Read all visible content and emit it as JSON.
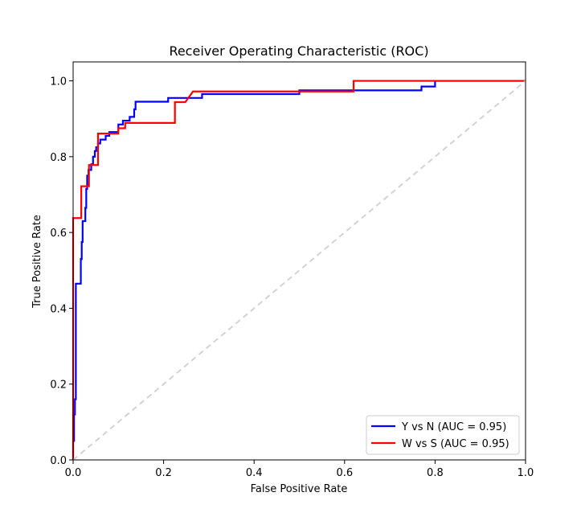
{
  "chart_data": {
    "type": "line",
    "title": "Receiver Operating Characteristic (ROC)",
    "xlabel": "False Positive Rate",
    "ylabel": "True Positive Rate",
    "xlim": [
      0.0,
      1.0
    ],
    "ylim": [
      0.0,
      1.05
    ],
    "x_ticks": [
      "0.0",
      "0.2",
      "0.4",
      "0.6",
      "0.8",
      "1.0"
    ],
    "y_ticks": [
      "0.0",
      "0.2",
      "0.4",
      "0.6",
      "0.8",
      "1.0"
    ],
    "grid": false,
    "legend_position": "lower-right",
    "series": [
      {
        "name": "Y vs N (AUC = 0.95)",
        "color": "#0000ff",
        "style": "solid",
        "points": [
          [
            0.0,
            0.0
          ],
          [
            0.0,
            0.05
          ],
          [
            0.002,
            0.05
          ],
          [
            0.002,
            0.12
          ],
          [
            0.004,
            0.12
          ],
          [
            0.004,
            0.16
          ],
          [
            0.006,
            0.16
          ],
          [
            0.006,
            0.465
          ],
          [
            0.017,
            0.465
          ],
          [
            0.017,
            0.53
          ],
          [
            0.019,
            0.53
          ],
          [
            0.019,
            0.575
          ],
          [
            0.021,
            0.575
          ],
          [
            0.021,
            0.63
          ],
          [
            0.027,
            0.63
          ],
          [
            0.027,
            0.665
          ],
          [
            0.029,
            0.665
          ],
          [
            0.029,
            0.715
          ],
          [
            0.031,
            0.715
          ],
          [
            0.031,
            0.75
          ],
          [
            0.034,
            0.75
          ],
          [
            0.034,
            0.765
          ],
          [
            0.04,
            0.765
          ],
          [
            0.04,
            0.78
          ],
          [
            0.044,
            0.78
          ],
          [
            0.044,
            0.8
          ],
          [
            0.048,
            0.8
          ],
          [
            0.048,
            0.815
          ],
          [
            0.051,
            0.815
          ],
          [
            0.051,
            0.825
          ],
          [
            0.055,
            0.825
          ],
          [
            0.055,
            0.835
          ],
          [
            0.06,
            0.835
          ],
          [
            0.06,
            0.845
          ],
          [
            0.072,
            0.845
          ],
          [
            0.072,
            0.855
          ],
          [
            0.08,
            0.855
          ],
          [
            0.08,
            0.865
          ],
          [
            0.1,
            0.865
          ],
          [
            0.1,
            0.885
          ],
          [
            0.11,
            0.885
          ],
          [
            0.11,
            0.895
          ],
          [
            0.125,
            0.895
          ],
          [
            0.125,
            0.905
          ],
          [
            0.135,
            0.905
          ],
          [
            0.135,
            0.925
          ],
          [
            0.138,
            0.925
          ],
          [
            0.138,
            0.945
          ],
          [
            0.21,
            0.945
          ],
          [
            0.21,
            0.955
          ],
          [
            0.285,
            0.955
          ],
          [
            0.285,
            0.965
          ],
          [
            0.5,
            0.965
          ],
          [
            0.5,
            0.975
          ],
          [
            0.77,
            0.975
          ],
          [
            0.77,
            0.985
          ],
          [
            0.8,
            0.985
          ],
          [
            0.8,
            1.0
          ],
          [
            1.0,
            1.0
          ]
        ]
      },
      {
        "name": "W vs S (AUC = 0.95)",
        "color": "#ff0000",
        "style": "solid",
        "points": [
          [
            0.0,
            0.0
          ],
          [
            0.0,
            0.638
          ],
          [
            0.018,
            0.638
          ],
          [
            0.018,
            0.722
          ],
          [
            0.035,
            0.722
          ],
          [
            0.035,
            0.778
          ],
          [
            0.055,
            0.778
          ],
          [
            0.055,
            0.861
          ],
          [
            0.1,
            0.861
          ],
          [
            0.1,
            0.875
          ],
          [
            0.115,
            0.875
          ],
          [
            0.115,
            0.889
          ],
          [
            0.225,
            0.889
          ],
          [
            0.225,
            0.944
          ],
          [
            0.248,
            0.944
          ],
          [
            0.265,
            0.972
          ],
          [
            0.62,
            0.972
          ],
          [
            0.62,
            1.0
          ],
          [
            1.0,
            1.0
          ]
        ]
      },
      {
        "name": "",
        "color": "#d3d3d3",
        "style": "dashed",
        "points": [
          [
            0.0,
            0.0
          ],
          [
            1.0,
            1.0
          ]
        ]
      }
    ]
  }
}
